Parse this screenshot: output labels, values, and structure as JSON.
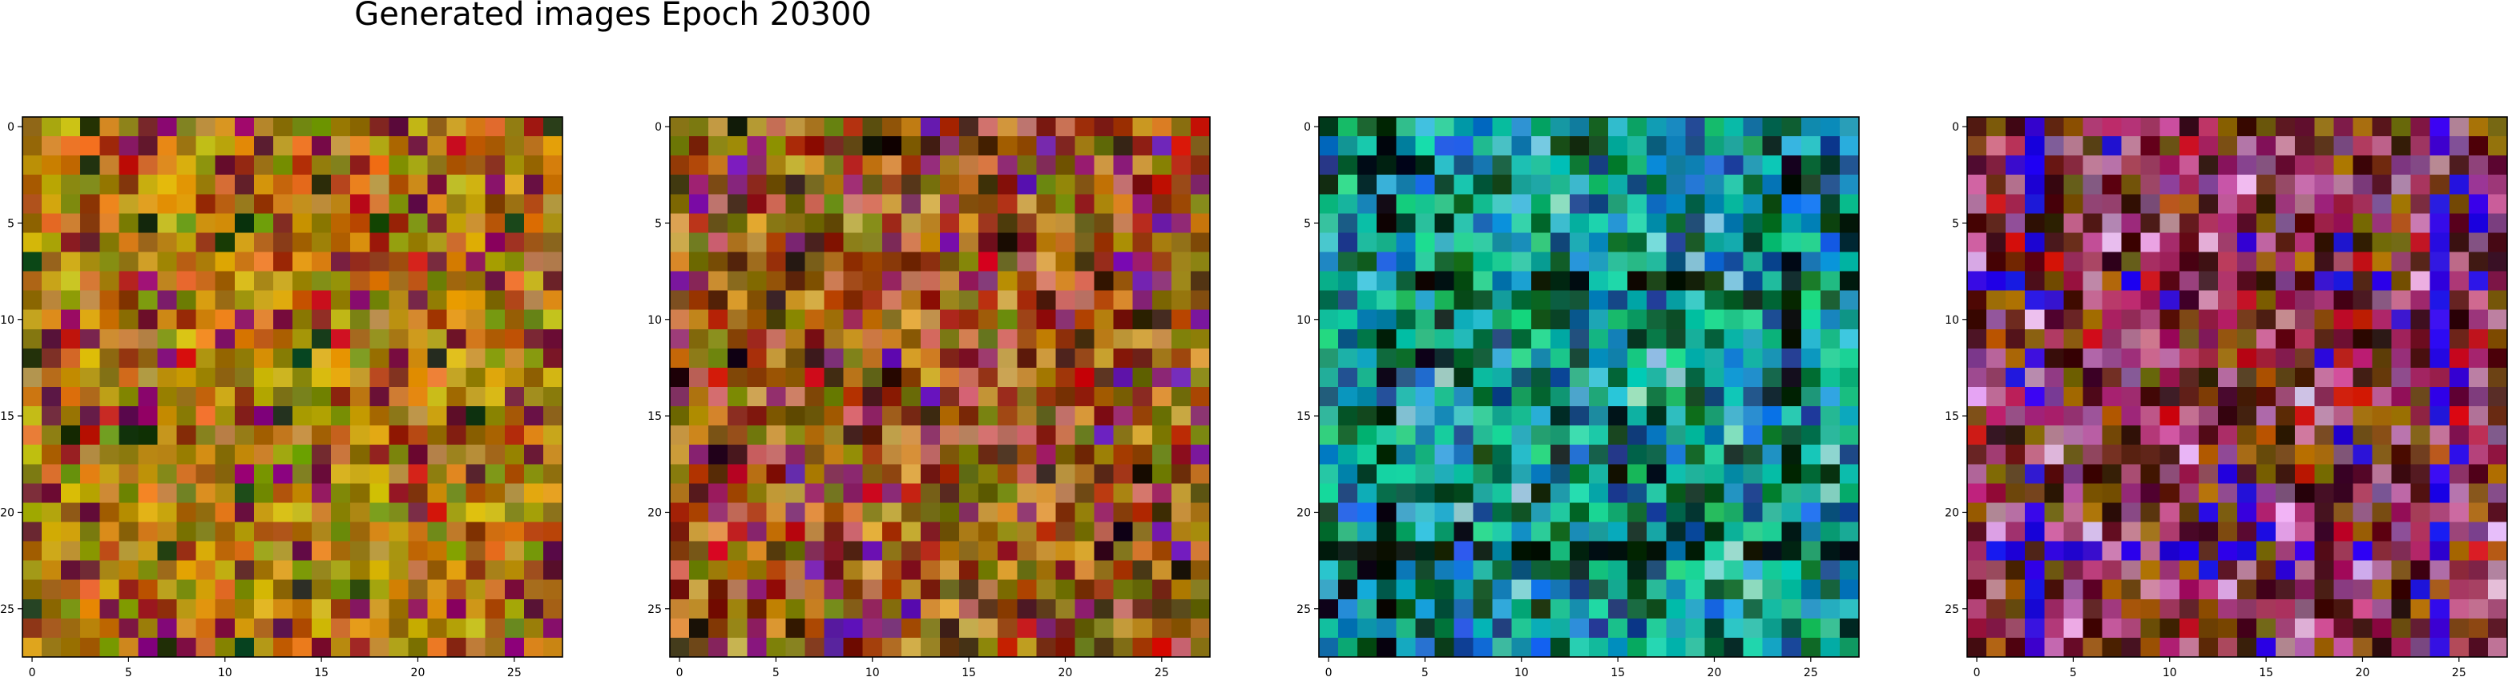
{
  "figure": {
    "title": "Generated images Epoch 20300"
  },
  "panels": [
    {
      "name": "generated-image-1",
      "palette": {
        "base": "#b88a10",
        "variants": [
          "#c97e0b",
          "#9a6a0a",
          "#a8950d",
          "#8a7208",
          "#d69a12",
          "#b2560d",
          "#d2b317",
          "#7a8e10",
          "#c48a3c",
          "#e07a24",
          "#8f2a12",
          "#6b1a3a"
        ],
        "accent": [
          "#c41b12",
          "#1a3a14",
          "#8e0a6e"
        ]
      },
      "x_ticks": [
        "0",
        "5",
        "10",
        "15",
        "20",
        "25"
      ],
      "y_ticks": [
        "0",
        "5",
        "10",
        "15",
        "20",
        "25"
      ]
    },
    {
      "name": "generated-image-2",
      "palette": {
        "base": "#a8620c",
        "variants": [
          "#b97a10",
          "#8f4a0c",
          "#9a7e10",
          "#6e5a0a",
          "#c88a30",
          "#a8350d",
          "#d2a040",
          "#7a7a10",
          "#c77060",
          "#7e1c10",
          "#4a2a14",
          "#8e2a6a"
        ],
        "accent": [
          "#c80f10",
          "#201008",
          "#6a1ab0"
        ]
      },
      "x_ticks": [
        "0",
        "5",
        "10",
        "15",
        "20",
        "25"
      ],
      "y_ticks": [
        "0",
        "5",
        "10",
        "15",
        "20",
        "25"
      ]
    },
    {
      "name": "generated-image-3",
      "palette": {
        "base": "#0e8a46",
        "variants": [
          "#14a86a",
          "#0a6a3a",
          "#0ea89a",
          "#12b8a8",
          "#0a7ab0",
          "#1c9ac8",
          "#0c5a2a",
          "#26c890",
          "#1a4a8a",
          "#2acaa0",
          "#0e3a20",
          "#3ab8d0"
        ],
        "accent": [
          "#02140a",
          "#1a6ae0",
          "#8ad0d0"
        ]
      },
      "x_ticks": [
        "0",
        "5",
        "10",
        "15",
        "20",
        "25"
      ],
      "y_ticks": [
        "0",
        "5",
        "10",
        "15",
        "20",
        "25"
      ]
    },
    {
      "name": "generated-image-4",
      "palette": {
        "base": "#7a2a30",
        "variants": [
          "#8e1a4a",
          "#5a1420",
          "#a03a6a",
          "#4a0a14",
          "#7a5a10",
          "#a8640a",
          "#c07aa0",
          "#3a1008",
          "#b0306a",
          "#6a3a14",
          "#c0609a",
          "#8a4a8a"
        ],
        "accent": [
          "#2a0ae0",
          "#c80f14",
          "#e0b0e8"
        ]
      },
      "x_ticks": [
        "0",
        "5",
        "10",
        "15",
        "20",
        "25"
      ],
      "y_ticks": [
        "0",
        "5",
        "10",
        "15",
        "20",
        "25"
      ]
    }
  ]
}
